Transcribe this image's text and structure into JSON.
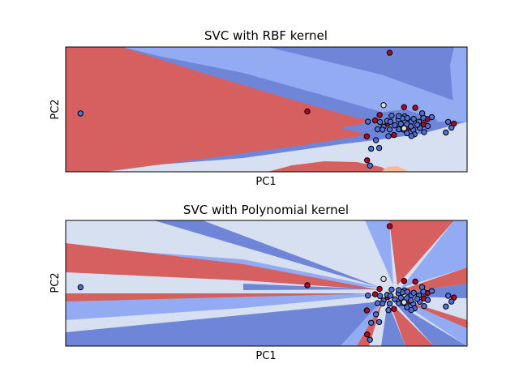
{
  "chart_data": [
    {
      "type": "scatter",
      "title": "SVC with RBF kernel",
      "xlabel": "PC1",
      "ylabel": "PC2",
      "xlim": [
        0,
        100
      ],
      "ylim": [
        0,
        100
      ],
      "xticks": false,
      "yticks": false,
      "background_regions": "decision-boundary",
      "colors": {
        "deep_red": "#d65f5f",
        "light_red": "#f7b89c",
        "deep_blue": "#6f86d8",
        "mid_blue": "#93abf2",
        "pale_blue": "#d6e0f0",
        "point_red": "#b40426",
        "point_blue": "#4f6fd8",
        "point_white": "#dddddd"
      },
      "series": [
        {
          "class": "red",
          "points": [
            [
              80.7,
              95.4
            ],
            [
              60.2,
              48.4
            ],
            [
              75.1,
              9.2
            ],
            [
              84.3,
              51.8
            ],
            [
              87.1,
              51.3
            ],
            [
              78.2,
              45.5
            ],
            [
              80.2,
              38.9
            ],
            [
              75.0,
              28.4
            ],
            [
              81.8,
              29.5
            ],
            [
              90.1,
              42.2
            ],
            [
              96.7,
              38.6
            ],
            [
              89.2,
              38.0
            ],
            [
              85.6,
              35.5
            ],
            [
              77.1,
              41.2
            ]
          ]
        },
        {
          "class": "blue",
          "points": [
            [
              3.7,
              46.8
            ],
            [
              75.8,
              5.0
            ],
            [
              75.3,
              40.2
            ],
            [
              82.9,
              42.0
            ],
            [
              79.2,
              36.2
            ],
            [
              86.1,
              40.1
            ],
            [
              83.5,
              38.4
            ],
            [
              86.6,
              33.5
            ],
            [
              95.3,
              40.0
            ],
            [
              96.1,
              35.4
            ],
            [
              86.9,
              30.0
            ],
            [
              81.2,
              45.0
            ],
            [
              78.9,
              33.8
            ],
            [
              84.4,
              44.4
            ],
            [
              85.0,
              38.2
            ],
            [
              77.7,
              34.1
            ],
            [
              80.1,
              40.8
            ],
            [
              88.2,
              35.2
            ],
            [
              78.1,
              19.1
            ],
            [
              77.3,
              25.3
            ],
            [
              76.1,
              18.5
            ],
            [
              89.1,
              43.3
            ],
            [
              78.3,
              39.9
            ],
            [
              86.7,
              42.4
            ],
            [
              86.1,
              28.7
            ],
            [
              89.3,
              31.8
            ],
            [
              83.0,
              34.0
            ],
            [
              88.8,
              46.9
            ],
            [
              90.2,
              36.7
            ],
            [
              83.9,
              42.8
            ],
            [
              82.0,
              37.3
            ],
            [
              84.1,
              33.8
            ],
            [
              88.0,
              40.1
            ],
            [
              80.7,
              33.9
            ],
            [
              87.6,
              37.6
            ],
            [
              85.1,
              43.1
            ],
            [
              80.4,
              28.6
            ],
            [
              85.0,
              30.9
            ],
            [
              86.0,
              36.4
            ],
            [
              91.2,
              43.8
            ],
            [
              80.9,
              40.1
            ],
            [
              94.7,
              31.5
            ],
            [
              83.0,
              44.6
            ]
          ]
        },
        {
          "class": "white",
          "points": [
            [
              79.2,
              53.4
            ],
            [
              84.3,
              34.9
            ]
          ]
        }
      ]
    },
    {
      "type": "scatter",
      "title": "SVC with Polynomial kernel",
      "xlabel": "PC1",
      "ylabel": "PC2",
      "xlim": [
        0,
        100
      ],
      "ylim": [
        0,
        100
      ],
      "xticks": false,
      "yticks": false,
      "background_regions": "decision-boundary",
      "series": [
        {
          "class": "red",
          "points": [
            [
              80.7,
              95.4
            ],
            [
              60.2,
              48.4
            ],
            [
              75.1,
              9.2
            ],
            [
              84.3,
              51.8
            ],
            [
              87.1,
              51.3
            ],
            [
              78.2,
              45.5
            ],
            [
              80.2,
              38.9
            ],
            [
              75.0,
              28.4
            ],
            [
              81.8,
              29.5
            ],
            [
              90.1,
              42.2
            ],
            [
              96.7,
              38.6
            ],
            [
              89.2,
              38.0
            ],
            [
              85.6,
              35.5
            ],
            [
              77.1,
              41.2
            ]
          ]
        },
        {
          "class": "blue",
          "points": [
            [
              3.7,
              46.8
            ],
            [
              75.8,
              5.0
            ],
            [
              75.3,
              40.2
            ],
            [
              82.9,
              42.0
            ],
            [
              79.2,
              36.2
            ],
            [
              86.1,
              40.1
            ],
            [
              83.5,
              38.4
            ],
            [
              86.6,
              33.5
            ],
            [
              95.3,
              40.0
            ],
            [
              96.1,
              35.4
            ],
            [
              86.9,
              30.0
            ],
            [
              81.2,
              45.0
            ],
            [
              78.9,
              33.8
            ],
            [
              84.4,
              44.4
            ],
            [
              85.0,
              38.2
            ],
            [
              77.7,
              34.1
            ],
            [
              80.1,
              40.8
            ],
            [
              88.2,
              35.2
            ],
            [
              78.1,
              19.1
            ],
            [
              77.3,
              25.3
            ],
            [
              76.1,
              18.5
            ],
            [
              89.1,
              43.3
            ],
            [
              78.3,
              39.9
            ],
            [
              86.7,
              42.4
            ],
            [
              86.1,
              28.7
            ],
            [
              89.3,
              31.8
            ],
            [
              83.0,
              34.0
            ],
            [
              88.8,
              46.9
            ],
            [
              90.2,
              36.7
            ],
            [
              83.9,
              42.8
            ],
            [
              82.0,
              37.3
            ],
            [
              84.1,
              33.8
            ],
            [
              88.0,
              40.1
            ],
            [
              80.7,
              33.9
            ],
            [
              87.6,
              37.6
            ],
            [
              85.1,
              43.1
            ],
            [
              80.4,
              28.6
            ],
            [
              85.0,
              30.9
            ],
            [
              86.0,
              36.4
            ],
            [
              91.2,
              43.8
            ],
            [
              80.9,
              40.1
            ],
            [
              94.7,
              31.5
            ],
            [
              83.0,
              44.6
            ]
          ]
        },
        {
          "class": "white",
          "points": [
            [
              79.2,
              53.4
            ],
            [
              84.3,
              34.9
            ]
          ]
        }
      ]
    }
  ]
}
